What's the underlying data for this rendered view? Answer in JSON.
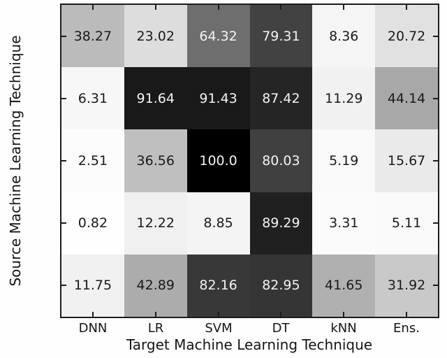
{
  "chart_data": {
    "type": "heatmap",
    "title": "",
    "xlabel": "Target Machine Learning Technique",
    "ylabel": "Source Machine Learning Technique",
    "x_categories": [
      "DNN",
      "LR",
      "SVM",
      "DT",
      "kNN",
      "Ens."
    ],
    "y_categories": [
      "DNN",
      "LR",
      "SVM",
      "DT",
      "kNN"
    ],
    "values": [
      [
        38.27,
        23.02,
        64.32,
        79.31,
        8.36,
        20.72
      ],
      [
        6.31,
        91.64,
        91.43,
        87.42,
        11.29,
        44.14
      ],
      [
        2.51,
        36.56,
        100.0,
        80.03,
        5.19,
        15.67
      ],
      [
        0.82,
        12.22,
        8.85,
        89.29,
        3.31,
        5.11
      ],
      [
        11.75,
        42.89,
        82.16,
        82.95,
        41.65,
        31.92
      ]
    ],
    "value_labels": [
      [
        "38.27",
        "23.02",
        "64.32",
        "79.31",
        "8.36",
        "20.72"
      ],
      [
        "6.31",
        "91.64",
        "91.43",
        "87.42",
        "11.29",
        "44.14"
      ],
      [
        "2.51",
        "36.56",
        "100.0",
        "80.03",
        "5.19",
        "15.67"
      ],
      [
        "0.82",
        "12.22",
        "8.85",
        "89.29",
        "3.31",
        "5.11"
      ],
      [
        "11.75",
        "42.89",
        "82.16",
        "82.95",
        "41.65",
        "31.92"
      ]
    ],
    "value_range": [
      0,
      100
    ],
    "colormap": "Greys",
    "colormap_stops": [
      "#ffffff",
      "#f0f0f0",
      "#d9d9d9",
      "#bdbdbd",
      "#969696",
      "#737373",
      "#525252",
      "#252525",
      "#000000"
    ],
    "cell_text_dark": "#1a1a1a",
    "cell_text_light": "#f4f4f4",
    "axis_color": "#1c1c1c",
    "grid": false,
    "legend": "none"
  }
}
